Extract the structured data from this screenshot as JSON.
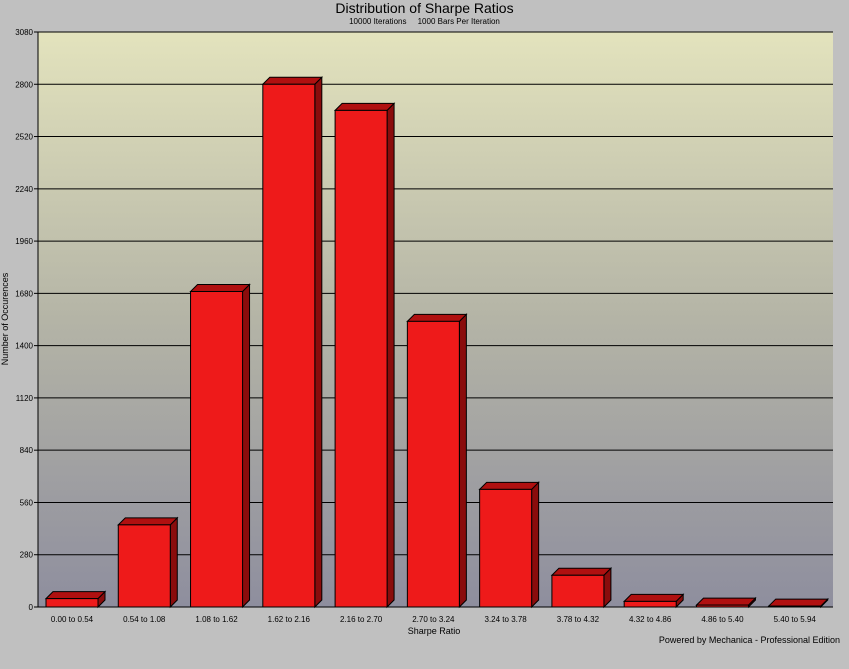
{
  "chart_data": {
    "type": "bar",
    "title": "Distribution of Sharpe Ratios",
    "subtitle_iterations": "10000 Iterations",
    "subtitle_bars": "1000 Bars Per Iteration",
    "xlabel": "Sharpe Ratio",
    "ylabel": "Number of Occurences",
    "ylim": [
      0,
      3080
    ],
    "yticks": [
      "0",
      "280",
      "560",
      "840",
      "1120",
      "1400",
      "1680",
      "1960",
      "2240",
      "2520",
      "2800",
      "3080"
    ],
    "categories": [
      "0.00 to 0.54",
      "0.54 to 1.08",
      "1.08 to 1.62",
      "1.62 to 2.16",
      "2.16 to 2.70",
      "2.70 to 3.24",
      "3.24 to 3.78",
      "3.78 to 4.32",
      "4.32 to 4.86",
      "4.86 to 5.40",
      "5.40 to 5.94"
    ],
    "values": [
      45,
      440,
      1690,
      2800,
      2660,
      1530,
      630,
      170,
      30,
      10,
      5
    ],
    "bar_color": "#ee1a1a",
    "bar_top_color": "#b01010",
    "bar_side_color": "#8a0c0c",
    "grid": true,
    "legend": "none"
  },
  "footer": {
    "credit": "Powered by Mechanica - Professional Edition"
  }
}
